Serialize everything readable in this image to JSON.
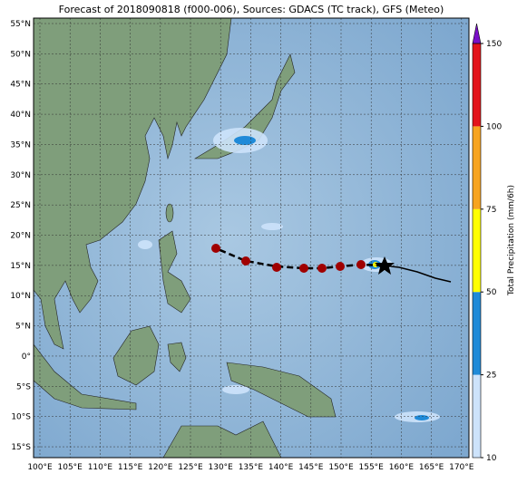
{
  "title": "Forecast of 2018090818 (f000-006), Sources: GDACS (TC track), GFS (Meteo)",
  "map": {
    "lat_labels": [
      "55°N",
      "50°N",
      "45°N",
      "40°N",
      "35°N",
      "30°N",
      "25°N",
      "20°N",
      "15°N",
      "10°N",
      "5°N",
      "0°",
      "5°S",
      "10°S",
      "15°S"
    ],
    "lon_labels": [
      "100°E",
      "105°E",
      "110°E",
      "115°E",
      "120°E",
      "125°E",
      "130°E",
      "135°E",
      "140°E",
      "145°E",
      "150°E",
      "155°E",
      "160°E",
      "165°E",
      "170°E"
    ]
  },
  "colorbar": {
    "label": "Total Precipitation (mm/6h)",
    "ticks": [
      10,
      25,
      50,
      75,
      100,
      150
    ],
    "colors": [
      "#cde3fb",
      "#1f8ad8",
      "#ffff00",
      "#f7a420",
      "#e3141b"
    ],
    "extend_color": "#7a10c8"
  }
}
